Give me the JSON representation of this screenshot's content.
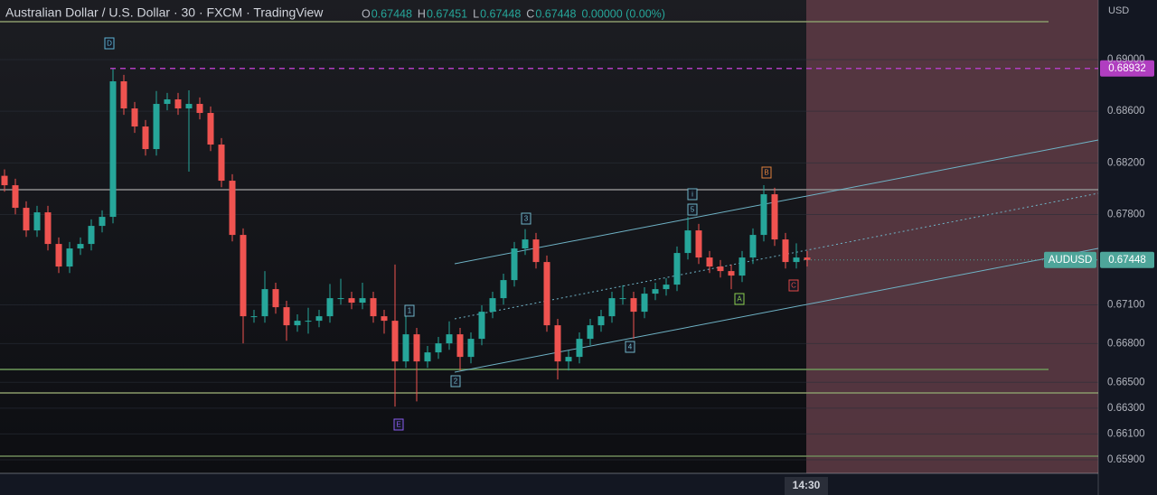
{
  "chart_data": {
    "type": "candlestick",
    "title": "Australian Dollar / U.S. Dollar · 30 · FXCM · TradingView",
    "ohlc_legend": [
      {
        "key": "O",
        "value": "0.67448"
      },
      {
        "key": "H",
        "value": "0.67451"
      },
      {
        "key": "L",
        "value": "0.67448"
      },
      {
        "key": "C",
        "value": "0.67448"
      }
    ],
    "change": "0.00000 (0.00%)",
    "currency": "USD",
    "time_label": "14:30",
    "symbol": "AUDUSD",
    "up_color": "#26a69a",
    "down_color": "#ef5350",
    "ylim": [
      0.65795,
      0.69462
    ],
    "yticks": [
      {
        "value": 0.69,
        "label": "0.69000"
      },
      {
        "value": 0.686,
        "label": "0.68600"
      },
      {
        "value": 0.682,
        "label": "0.68200"
      },
      {
        "value": 0.678,
        "label": "0.67800"
      },
      {
        "value": 0.671,
        "label": "0.67100"
      },
      {
        "value": 0.668,
        "label": "0.66800"
      },
      {
        "value": 0.665,
        "label": "0.66500"
      },
      {
        "value": 0.663,
        "label": "0.66300"
      },
      {
        "value": 0.661,
        "label": "0.66100"
      },
      {
        "value": 0.659,
        "label": "0.65900"
      }
    ],
    "grid": true,
    "price_lines": [
      {
        "value": 0.68932,
        "label": "0.68932",
        "color": "#b03ec0"
      }
    ],
    "last_price": {
      "value": 0.67448,
      "label": "0.67448",
      "color": "#4ea59a"
    },
    "wave_labels": [
      "D",
      "E",
      "1",
      "2",
      "3",
      "4",
      "5",
      "i",
      "A",
      "B",
      "C"
    ],
    "open": [
      0.681,
      0.68027,
      0.67852,
      0.67677,
      0.67817,
      0.67572,
      0.67397,
      0.67537,
      0.67572,
      0.67712,
      0.67782,
      0.68832,
      0.68622,
      0.68482,
      0.68307,
      0.68657,
      0.68692,
      0.68622,
      0.68657,
      0.68587,
      0.68342,
      0.68062,
      0.67642,
      0.67012,
      0.67012,
      0.67222,
      0.67082,
      0.66942,
      0.66977,
      0.66977,
      0.67012,
      0.67152,
      0.67152,
      0.67117,
      0.67152,
      0.67012,
      0.66977,
      0.66662,
      0.66872,
      0.66662,
      0.66732,
      0.66802,
      0.66872,
      0.66697,
      0.66837,
      0.67047,
      0.67152,
      0.67292,
      0.67537,
      0.67607,
      0.67432,
      0.66942,
      0.66662,
      0.66697,
      0.66837,
      0.66942,
      0.67012,
      0.67152,
      0.67152,
      0.67047,
      0.67187,
      0.67222,
      0.67257,
      0.67502,
      0.67677,
      0.67467,
      0.67397,
      0.67362,
      0.67327,
      0.67467,
      0.67642,
      0.67957,
      0.67607,
      0.67432,
      0.67467
    ],
    "high": [
      0.6815,
      0.68077,
      0.67902,
      0.67867,
      0.67867,
      0.67622,
      0.67587,
      0.67622,
      0.67762,
      0.67832,
      0.68932,
      0.68882,
      0.68672,
      0.68532,
      0.68757,
      0.68742,
      0.68742,
      0.68762,
      0.68707,
      0.68637,
      0.68392,
      0.68112,
      0.67692,
      0.67062,
      0.67362,
      0.67272,
      0.67132,
      0.67027,
      0.67077,
      0.67062,
      0.67262,
      0.67302,
      0.67202,
      0.67272,
      0.67202,
      0.67062,
      0.67412,
      0.67012,
      0.66922,
      0.66782,
      0.66852,
      0.66972,
      0.66922,
      0.66887,
      0.67097,
      0.67202,
      0.67342,
      0.67587,
      0.67687,
      0.67657,
      0.67482,
      0.66992,
      0.66747,
      0.66887,
      0.66992,
      0.67062,
      0.67202,
      0.67252,
      0.67202,
      0.67237,
      0.67272,
      0.67307,
      0.67552,
      0.67782,
      0.67727,
      0.67517,
      0.67447,
      0.67412,
      0.67517,
      0.67692,
      0.68027,
      0.68007,
      0.67657,
      0.67577,
      0.67517
    ],
    "low": [
      0.67977,
      0.67802,
      0.67627,
      0.67627,
      0.67522,
      0.67347,
      0.67347,
      0.67487,
      0.67522,
      0.67662,
      0.67732,
      0.68572,
      0.68432,
      0.68257,
      0.68257,
      0.68607,
      0.68572,
      0.68132,
      0.68537,
      0.68292,
      0.68012,
      0.67592,
      0.66802,
      0.66962,
      0.66962,
      0.67032,
      0.66822,
      0.66892,
      0.66877,
      0.66927,
      0.66962,
      0.67102,
      0.67067,
      0.67067,
      0.66962,
      0.66877,
      0.66312,
      0.66612,
      0.66352,
      0.66612,
      0.66682,
      0.66752,
      0.66592,
      0.66647,
      0.66787,
      0.66997,
      0.67102,
      0.67242,
      0.67487,
      0.67382,
      0.66892,
      0.66522,
      0.66592,
      0.66647,
      0.66787,
      0.66892,
      0.66962,
      0.67102,
      0.66837,
      0.66997,
      0.67137,
      0.67172,
      0.67207,
      0.67452,
      0.67417,
      0.67347,
      0.67312,
      0.67222,
      0.67277,
      0.67417,
      0.67592,
      0.67557,
      0.67382,
      0.67382,
      0.67398
    ],
    "close": [
      0.68027,
      0.67852,
      0.67677,
      0.67817,
      0.67572,
      0.67397,
      0.67537,
      0.67572,
      0.67712,
      0.67782,
      0.68832,
      0.68622,
      0.68482,
      0.68307,
      0.68657,
      0.68692,
      0.68622,
      0.68657,
      0.68587,
      0.68342,
      0.68062,
      0.67642,
      0.67012,
      0.67012,
      0.67222,
      0.67082,
      0.66942,
      0.66977,
      0.66977,
      0.67012,
      0.67152,
      0.67152,
      0.67117,
      0.67152,
      0.67012,
      0.66977,
      0.66662,
      0.66872,
      0.66662,
      0.66732,
      0.66802,
      0.66872,
      0.66697,
      0.66837,
      0.67047,
      0.67152,
      0.67292,
      0.67537,
      0.67607,
      0.67432,
      0.66942,
      0.66662,
      0.66697,
      0.66837,
      0.66942,
      0.67012,
      0.67152,
      0.67152,
      0.67047,
      0.67187,
      0.67222,
      0.67257,
      0.67502,
      0.67677,
      0.67467,
      0.67397,
      0.67362,
      0.67327,
      0.67467,
      0.67642,
      0.67957,
      0.67607,
      0.67432,
      0.67467,
      0.67448
    ]
  }
}
